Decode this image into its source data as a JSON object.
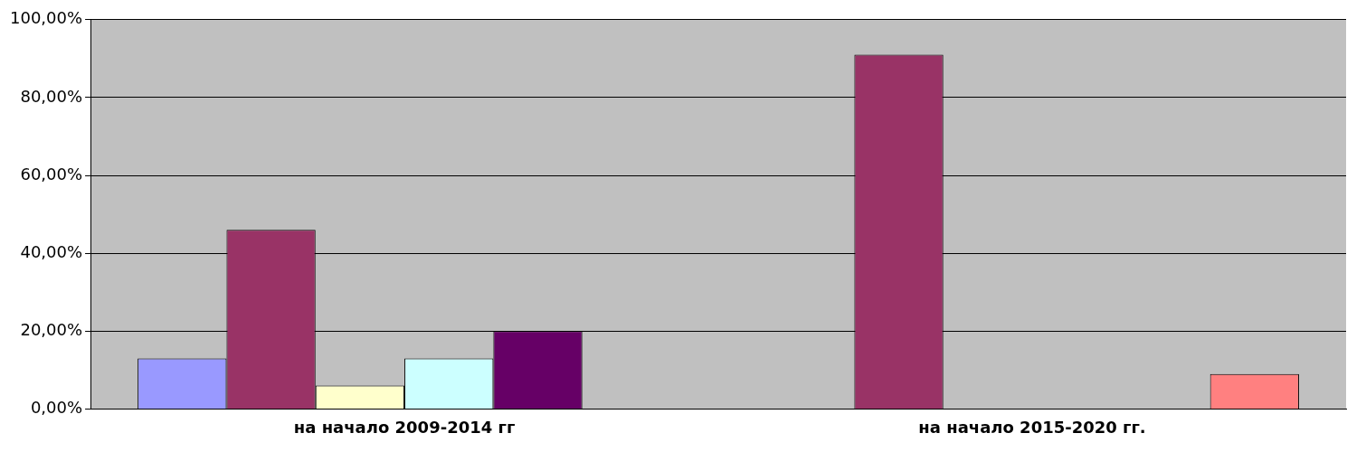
{
  "chart_data": {
    "type": "bar",
    "categories": [
      "на начало 2009-2014 гг",
      "на начало 2015-2020 гг."
    ],
    "series": [
      {
        "color": "#9999ff",
        "values": [
          13,
          0
        ]
      },
      {
        "color": "#993366",
        "values": [
          46,
          91
        ]
      },
      {
        "color": "#ffffcc",
        "values": [
          6,
          0
        ]
      },
      {
        "color": "#ccffff",
        "values": [
          13,
          0
        ]
      },
      {
        "color": "#660066",
        "values": [
          20,
          0
        ]
      },
      {
        "color": "#ff8080",
        "values": [
          0,
          9
        ]
      }
    ],
    "ylim": [
      0,
      100
    ],
    "yticks": [
      {
        "value": 0,
        "label": "0,00%"
      },
      {
        "value": 20,
        "label": "20,00%"
      },
      {
        "value": 40,
        "label": "40,00%"
      },
      {
        "value": 60,
        "label": "60,00%"
      },
      {
        "value": 80,
        "label": "80,00%"
      },
      {
        "value": 100,
        "label": "100,00%"
      }
    ],
    "grid": "y",
    "legend": false
  }
}
